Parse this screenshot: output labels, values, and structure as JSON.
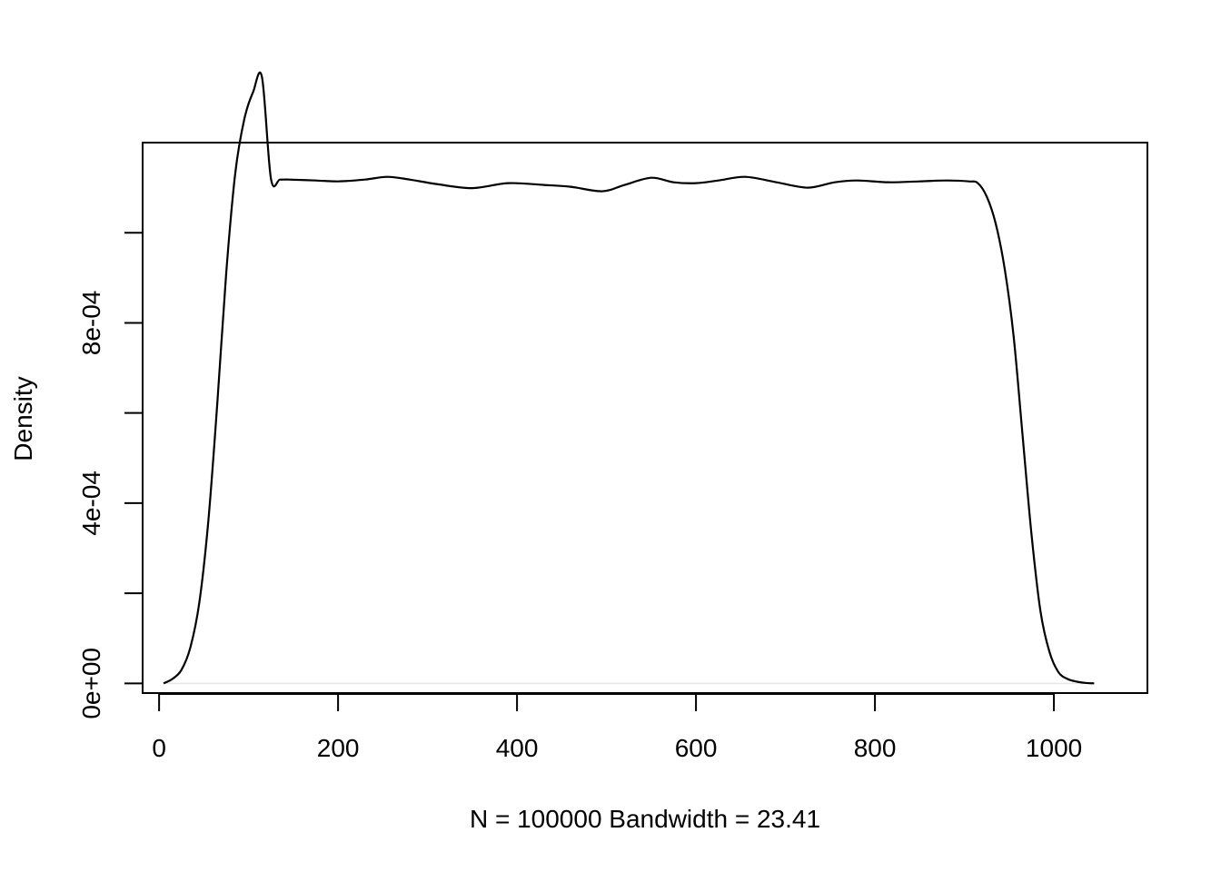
{
  "chart_data": {
    "type": "line",
    "xlabel": "N = 100000   Bandwidth = 23.41",
    "ylabel": "Density",
    "xlim": [
      -18.4,
      1104.5
    ],
    "ylim": [
      -2.15e-05,
      0.0012
    ],
    "grid": false,
    "legend": "none",
    "line_color": "#000000",
    "baseline_color": "#e6e6e6",
    "x_ticks": [
      0,
      200,
      400,
      600,
      800,
      1000
    ],
    "x_tick_labels": [
      "0",
      "200",
      "400",
      "600",
      "800",
      "1000"
    ],
    "y_ticks": [
      0,
      0.0002,
      0.0004,
      0.0006,
      0.0008,
      0.001
    ],
    "y_tick_labels": [
      "0e+00",
      "",
      "4e-04",
      "",
      "8e-04",
      ""
    ],
    "series": [
      {
        "x": [
          5,
          15,
          25,
          35,
          45,
          55,
          65,
          75,
          85,
          95,
          105,
          115,
          125,
          135,
          145,
          175,
          200,
          230,
          255,
          280,
          310,
          350,
          390,
          430,
          460,
          495,
          520,
          550,
          575,
          600,
          625,
          655,
          690,
          725,
          755,
          780,
          815,
          850,
          880,
          905,
          915,
          925,
          935,
          945,
          955,
          965,
          975,
          985,
          995,
          1005,
          1015,
          1025,
          1035,
          1045
        ],
        "y": [
          0.0,
          1e-05,
          3e-05,
          8e-05,
          0.00018,
          0.00036,
          0.00062,
          0.00091,
          0.00113,
          0.00125,
          0.001312,
          0.001345,
          0.00112,
          0.001118,
          0.001118,
          0.001116,
          0.001114,
          0.001118,
          0.001124,
          0.001118,
          0.001108,
          0.001099,
          0.00111,
          0.001106,
          0.001102,
          0.001092,
          0.001106,
          0.001122,
          0.001112,
          0.00111,
          0.001116,
          0.001124,
          0.001112,
          0.0011,
          0.001112,
          0.001116,
          0.001112,
          0.001114,
          0.001116,
          0.001114,
          0.00111,
          0.00108,
          0.00102,
          0.00092,
          0.00077,
          0.00055,
          0.00033,
          0.00016,
          7e-05,
          2.5e-05,
          1e-05,
          4e-06,
          1e-06,
          0.0
        ]
      }
    ]
  }
}
